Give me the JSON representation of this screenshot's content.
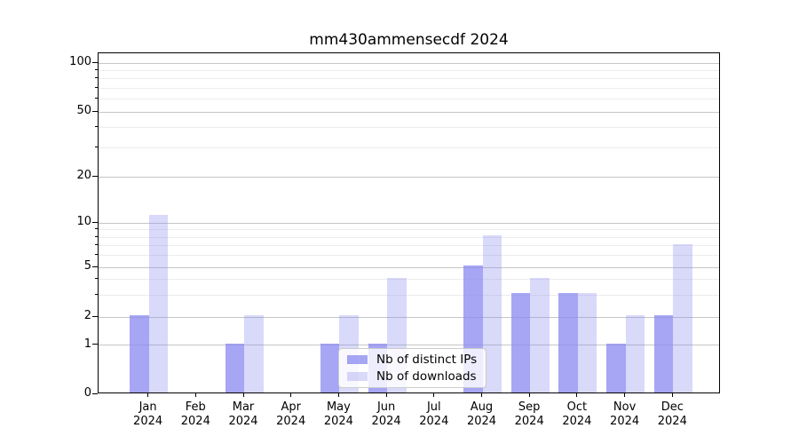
{
  "title": "mm430ammensecdf 2024",
  "chart_data": {
    "type": "bar",
    "title": "mm430ammensecdf 2024",
    "categories": [
      "Jan",
      "Feb",
      "Mar",
      "Apr",
      "May",
      "Jun",
      "Jul",
      "Aug",
      "Sep",
      "Oct",
      "Nov",
      "Dec"
    ],
    "year": "2024",
    "series": [
      {
        "name": "Nb of distinct IPs",
        "color": "rgba(136,136,240,0.75)",
        "values": [
          2,
          0,
          1,
          0,
          1,
          1,
          0,
          5,
          3,
          3,
          1,
          2
        ]
      },
      {
        "name": "Nb of downloads",
        "color": "rgba(136,136,240,0.32)",
        "values": [
          11,
          0,
          2,
          0,
          2,
          4,
          0,
          8,
          4,
          3,
          2,
          7
        ]
      }
    ],
    "yscale": "symlog",
    "ylim": [
      0,
      115
    ],
    "y_major_ticks": [
      0,
      1,
      2,
      5,
      10,
      20,
      50,
      100
    ],
    "y_minor_ticks": [
      3,
      4,
      6,
      7,
      8,
      9,
      30,
      40,
      60,
      70,
      80,
      90
    ],
    "grid": true,
    "legend_position": "lower center",
    "colors": {
      "grid_major": "#c6c6c6",
      "grid_minor": "#ececec",
      "axis": "#000000",
      "background": "#ffffff"
    }
  }
}
